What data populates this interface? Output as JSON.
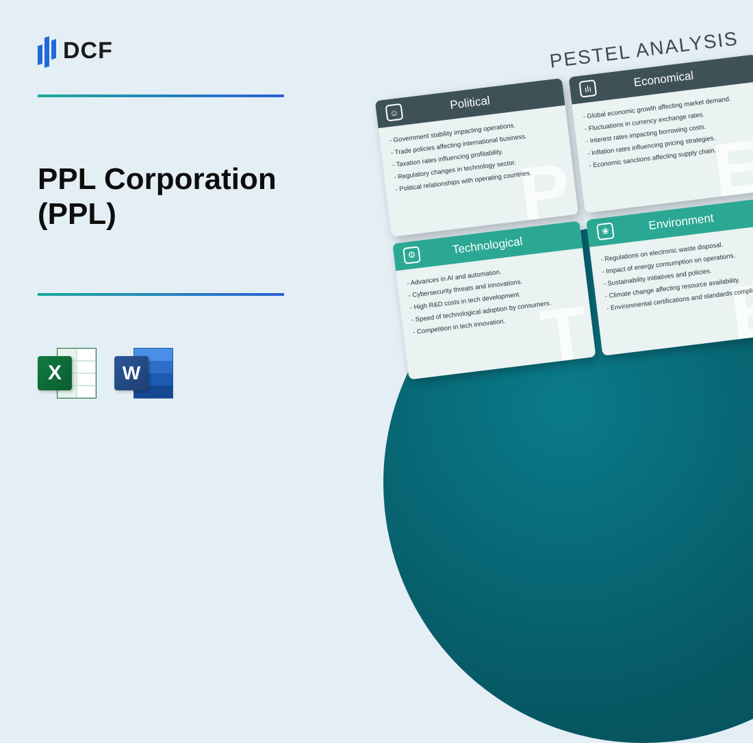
{
  "logo": {
    "text": "DCF"
  },
  "title_line1": "PPL Corporation",
  "title_line2": "(PPL)",
  "excel_letter": "X",
  "word_letter": "W",
  "pestel": {
    "heading": "PESTEL ANALYSIS",
    "cards": {
      "political": {
        "title": "Political",
        "watermark": "P",
        "items": [
          "Government stability impacting operations.",
          "Trade policies affecting international business.",
          "Taxation rates influencing profitability.",
          "Regulatory changes in technology sector.",
          "Political relationships with operating countries."
        ]
      },
      "economical": {
        "title": "Economical",
        "watermark": "E",
        "items": [
          "Global economic growth affecting market demand.",
          "Fluctuations in currency exchange rates.",
          "Interest rates impacting borrowing costs.",
          "Inflation rates influencing pricing strategies.",
          "Economic sanctions affecting supply chain."
        ]
      },
      "technological": {
        "title": "Technological",
        "watermark": "T",
        "items": [
          "Advances in AI and automation.",
          "Cybersecurity threats and innovations.",
          "High R&D costs in tech development.",
          "Speed of technological adoption by consumers.",
          "Competition in tech innovation."
        ]
      },
      "environment": {
        "title": "Environment",
        "watermark": "E",
        "items": [
          "Regulations on electronic waste disposal.",
          "Impact of energy consumption on operations.",
          "Sustainability initiatives and policies.",
          "Climate change affecting resource availability.",
          "Environmental certifications and standards compliance."
        ]
      }
    }
  },
  "colors": {
    "page_bg": "#e4eef5",
    "dark_header": "#3e5157",
    "teal_header": "#2ba893",
    "card_bg": "#eaf2f2",
    "circle_inner": "#0a7b8a",
    "circle_outer": "#065560",
    "divider_start": "#1aa89a",
    "divider_end": "#2b5fd9",
    "logo_bar": "#2169d8"
  }
}
